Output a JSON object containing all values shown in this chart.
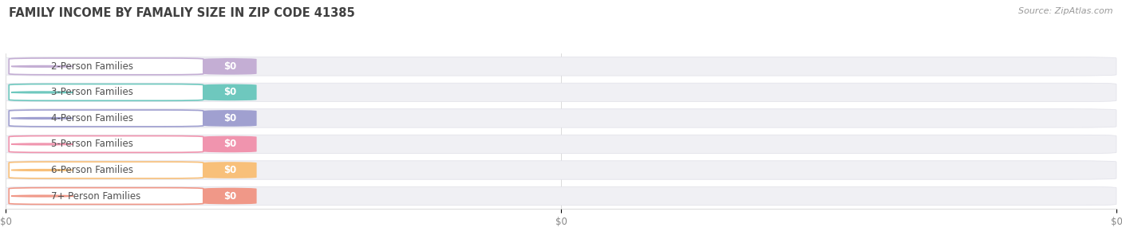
{
  "title": "FAMILY INCOME BY FAMALIY SIZE IN ZIP CODE 41385",
  "source_text": "Source: ZipAtlas.com",
  "categories": [
    "2-Person Families",
    "3-Person Families",
    "4-Person Families",
    "5-Person Families",
    "6-Person Families",
    "7+ Person Families"
  ],
  "values": [
    0,
    0,
    0,
    0,
    0,
    0
  ],
  "bar_colors": [
    "#c4aed4",
    "#6ec8be",
    "#a0a0d0",
    "#f094ae",
    "#f8c07a",
    "#f09888"
  ],
  "bar_bg_color": "#f0f0f4",
  "value_labels": [
    "$0",
    "$0",
    "$0",
    "$0",
    "$0",
    "$0"
  ],
  "x_tick_labels": [
    "$0",
    "$0",
    "$0"
  ],
  "background_color": "#ffffff",
  "title_color": "#404040",
  "label_text_color": "#505050",
  "source_color": "#999999",
  "figsize": [
    14.06,
    3.05
  ],
  "dpi": 100
}
